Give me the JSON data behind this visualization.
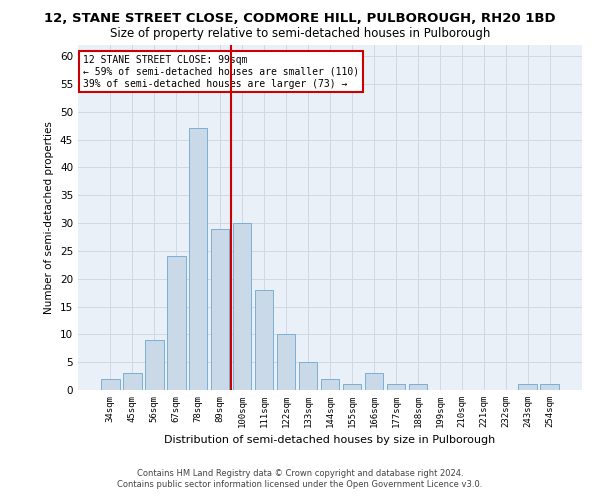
{
  "title1": "12, STANE STREET CLOSE, CODMORE HILL, PULBOROUGH, RH20 1BD",
  "title2": "Size of property relative to semi-detached houses in Pulborough",
  "xlabel": "Distribution of semi-detached houses by size in Pulborough",
  "ylabel": "Number of semi-detached properties",
  "footer1": "Contains HM Land Registry data © Crown copyright and database right 2024.",
  "footer2": "Contains public sector information licensed under the Open Government Licence v3.0.",
  "categories": [
    "34sqm",
    "45sqm",
    "56sqm",
    "67sqm",
    "78sqm",
    "89sqm",
    "100sqm",
    "111sqm",
    "122sqm",
    "133sqm",
    "144sqm",
    "155sqm",
    "166sqm",
    "177sqm",
    "188sqm",
    "199sqm",
    "210sqm",
    "221sqm",
    "232sqm",
    "243sqm",
    "254sqm"
  ],
  "values": [
    2,
    3,
    9,
    24,
    47,
    29,
    30,
    18,
    10,
    5,
    2,
    1,
    3,
    1,
    1,
    0,
    0,
    0,
    0,
    1,
    1
  ],
  "bar_color": "#c9d9e8",
  "bar_edge_color": "#7bafd4",
  "grid_color": "#d0d8e8",
  "vline_index": 6,
  "vline_color": "#cc0000",
  "annotation_text": "12 STANE STREET CLOSE: 99sqm\n← 59% of semi-detached houses are smaller (110)\n39% of semi-detached houses are larger (73) →",
  "annotation_box_color": "#ffffff",
  "annotation_box_edge": "#cc0000",
  "ylim": [
    0,
    62
  ],
  "yticks": [
    0,
    5,
    10,
    15,
    20,
    25,
    30,
    35,
    40,
    45,
    50,
    55,
    60
  ],
  "bg_color": "#eaf0f8",
  "title1_fontsize": 9.5,
  "title2_fontsize": 8.5
}
